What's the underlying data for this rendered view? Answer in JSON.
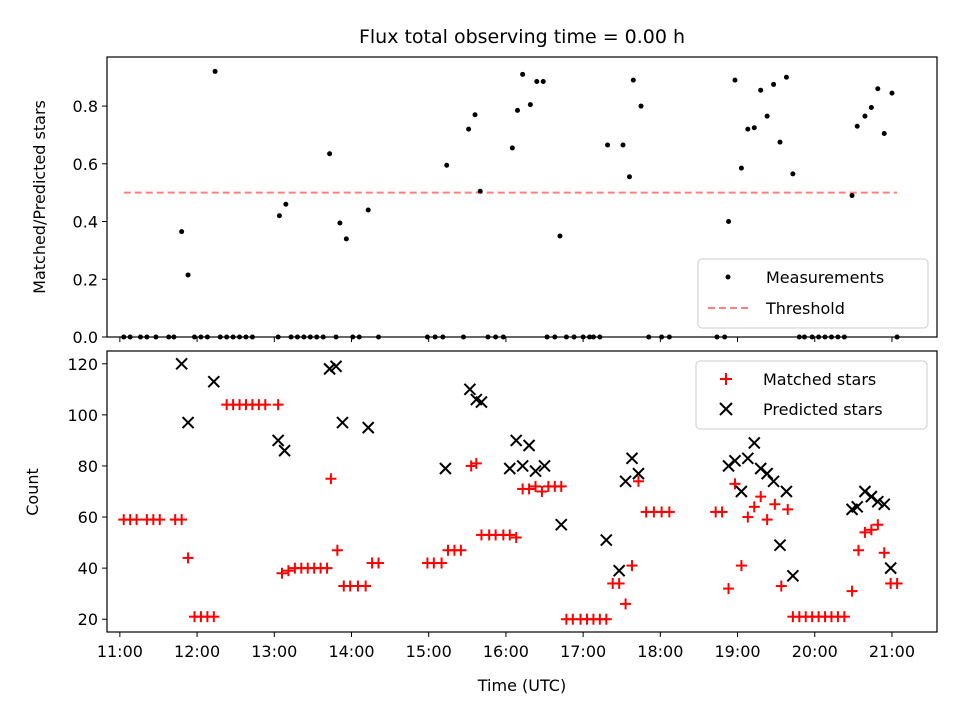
{
  "chart_data": [
    {
      "type": "scatter",
      "title": "Flux total observing time = 0.00 h",
      "xlabel": "",
      "ylabel": "Matched/Predicted stars",
      "xlim": [
        "10:50",
        "21:35"
      ],
      "ylim": [
        0,
        0.97
      ],
      "yticks": [
        0.0,
        0.2,
        0.4,
        0.6,
        0.8
      ],
      "ytick_labels": [
        "0.0",
        "0.2",
        "0.4",
        "0.6",
        "0.8"
      ],
      "grid": false,
      "legend_position": "lower-right",
      "series": [
        {
          "name": "Measurements",
          "color": "#000000",
          "marker": "dot",
          "points": [
            [
              "11:03",
              0
            ],
            [
              "11:08",
              0
            ],
            [
              "11:16",
              0
            ],
            [
              "11:21",
              0
            ],
            [
              "11:28",
              0
            ],
            [
              "11:38",
              0
            ],
            [
              "11:42",
              0
            ],
            [
              "11:48",
              0.365
            ],
            [
              "11:53",
              0.215
            ],
            [
              "11:58",
              0
            ],
            [
              "12:03",
              0
            ],
            [
              "12:08",
              0
            ],
            [
              "12:14",
              0.92
            ],
            [
              "12:18",
              0
            ],
            [
              "12:23",
              0
            ],
            [
              "12:28",
              0
            ],
            [
              "12:33",
              0
            ],
            [
              "12:38",
              0
            ],
            [
              "12:43",
              0
            ],
            [
              "13:03",
              0
            ],
            [
              "13:04",
              0.42
            ],
            [
              "13:09",
              0.46
            ],
            [
              "13:13",
              0
            ],
            [
              "13:18",
              0
            ],
            [
              "13:23",
              0
            ],
            [
              "13:28",
              0
            ],
            [
              "13:33",
              0
            ],
            [
              "13:38",
              0
            ],
            [
              "13:43",
              0.635
            ],
            [
              "13:48",
              0
            ],
            [
              "13:51",
              0.395
            ],
            [
              "13:56",
              0.34
            ],
            [
              "14:01",
              0
            ],
            [
              "14:06",
              0
            ],
            [
              "14:13",
              0.44
            ],
            [
              "14:21",
              0
            ],
            [
              "14:59",
              0
            ],
            [
              "15:05",
              0
            ],
            [
              "15:11",
              0
            ],
            [
              "15:14",
              0.595
            ],
            [
              "15:27",
              0
            ],
            [
              "15:31",
              0.72
            ],
            [
              "15:36",
              0.77
            ],
            [
              "15:40",
              0.505
            ],
            [
              "15:46",
              0
            ],
            [
              "15:52",
              0
            ],
            [
              "15:58",
              0
            ],
            [
              "16:05",
              0.655
            ],
            [
              "16:09",
              0.785
            ],
            [
              "16:13",
              0.91
            ],
            [
              "16:19",
              0.805
            ],
            [
              "16:24",
              0.885
            ],
            [
              "16:29",
              0.885
            ],
            [
              "16:32",
              0
            ],
            [
              "16:38",
              0
            ],
            [
              "16:42",
              0.35
            ],
            [
              "16:47",
              0
            ],
            [
              "16:53",
              0
            ],
            [
              "17:00",
              0
            ],
            [
              "17:05",
              0
            ],
            [
              "17:08",
              0
            ],
            [
              "17:13",
              0
            ],
            [
              "17:19",
              0.665
            ],
            [
              "17:31",
              0.665
            ],
            [
              "17:36",
              0.555
            ],
            [
              "17:39",
              0.89
            ],
            [
              "17:45",
              0.8
            ],
            [
              "17:51",
              0
            ],
            [
              "18:01",
              0
            ],
            [
              "18:07",
              0
            ],
            [
              "18:44",
              0
            ],
            [
              "18:50",
              0
            ],
            [
              "18:53",
              0.4
            ],
            [
              "18:58",
              0.89
            ],
            [
              "19:03",
              0.585
            ],
            [
              "19:08",
              0.72
            ],
            [
              "19:13",
              0.725
            ],
            [
              "19:18",
              0.855
            ],
            [
              "19:23",
              0.765
            ],
            [
              "19:28",
              0.875
            ],
            [
              "19:33",
              0.675
            ],
            [
              "19:38",
              0.9
            ],
            [
              "19:43",
              0.565
            ],
            [
              "19:48",
              0
            ],
            [
              "19:52",
              0
            ],
            [
              "19:58",
              0
            ],
            [
              "20:03",
              0
            ],
            [
              "20:08",
              0
            ],
            [
              "20:13",
              0
            ],
            [
              "20:18",
              0
            ],
            [
              "20:23",
              0
            ],
            [
              "20:29",
              0.49
            ],
            [
              "20:33",
              0.73
            ],
            [
              "20:39",
              0.765
            ],
            [
              "20:44",
              0.795
            ],
            [
              "20:49",
              0.86
            ],
            [
              "20:54",
              0.705
            ],
            [
              "21:00",
              0.845
            ],
            [
              "21:04",
              0
            ]
          ]
        },
        {
          "name": "Threshold",
          "color": "#ff7f7f",
          "style": "dashed",
          "points": [
            [
              "11:03",
              0.5
            ],
            [
              "21:04",
              0.5
            ]
          ]
        }
      ]
    },
    {
      "type": "scatter",
      "title": "",
      "xlabel": "Time (UTC)",
      "ylabel": "Count",
      "xlim": [
        "10:50",
        "21:35"
      ],
      "ylim": [
        15,
        125
      ],
      "xticks": [
        "11:00",
        "12:00",
        "13:00",
        "14:00",
        "15:00",
        "16:00",
        "17:00",
        "18:00",
        "19:00",
        "20:00",
        "21:00"
      ],
      "yticks": [
        20,
        40,
        60,
        80,
        100,
        120
      ],
      "grid": false,
      "legend_position": "upper-right",
      "series": [
        {
          "name": "Matched stars",
          "color": "#ff0000",
          "marker": "plus",
          "points": [
            [
              "11:03",
              59
            ],
            [
              "11:08",
              59
            ],
            [
              "11:13",
              59
            ],
            [
              "11:21",
              59
            ],
            [
              "11:26",
              59
            ],
            [
              "11:31",
              59
            ],
            [
              "11:43",
              59
            ],
            [
              "11:48",
              59
            ],
            [
              "11:53",
              44
            ],
            [
              "11:58",
              21
            ],
            [
              "12:03",
              21
            ],
            [
              "12:08",
              21
            ],
            [
              "12:13",
              21
            ],
            [
              "12:23",
              104
            ],
            [
              "12:28",
              104
            ],
            [
              "12:33",
              104
            ],
            [
              "12:38",
              104
            ],
            [
              "12:43",
              104
            ],
            [
              "12:48",
              104
            ],
            [
              "12:53",
              104
            ],
            [
              "13:03",
              104
            ],
            [
              "13:06",
              38
            ],
            [
              "13:11",
              39
            ],
            [
              "13:16",
              40
            ],
            [
              "13:21",
              40
            ],
            [
              "13:26",
              40
            ],
            [
              "13:31",
              40
            ],
            [
              "13:36",
              40
            ],
            [
              "13:41",
              40
            ],
            [
              "13:44",
              75
            ],
            [
              "13:49",
              47
            ],
            [
              "13:54",
              33
            ],
            [
              "13:59",
              33
            ],
            [
              "14:05",
              33
            ],
            [
              "14:11",
              33
            ],
            [
              "14:16",
              42
            ],
            [
              "14:21",
              42
            ],
            [
              "14:59",
              42
            ],
            [
              "15:04",
              42
            ],
            [
              "15:10",
              42
            ],
            [
              "15:15",
              47
            ],
            [
              "15:20",
              47
            ],
            [
              "15:25",
              47
            ],
            [
              "15:33",
              80
            ],
            [
              "15:37",
              81
            ],
            [
              "15:41",
              53
            ],
            [
              "15:47",
              53
            ],
            [
              "15:52",
              53
            ],
            [
              "15:58",
              53
            ],
            [
              "16:03",
              53
            ],
            [
              "16:08",
              52
            ],
            [
              "16:13",
              71
            ],
            [
              "16:18",
              71
            ],
            [
              "16:23",
              72
            ],
            [
              "16:28",
              70
            ],
            [
              "16:33",
              72
            ],
            [
              "16:38",
              72
            ],
            [
              "16:43",
              72
            ],
            [
              "16:47",
              20
            ],
            [
              "16:52",
              20
            ],
            [
              "16:58",
              20
            ],
            [
              "17:03",
              20
            ],
            [
              "17:08",
              20
            ],
            [
              "17:13",
              20
            ],
            [
              "17:18",
              20
            ],
            [
              "17:23",
              34
            ],
            [
              "17:28",
              34
            ],
            [
              "17:33",
              26
            ],
            [
              "17:38",
              41
            ],
            [
              "17:43",
              74
            ],
            [
              "17:49",
              62
            ],
            [
              "17:55",
              62
            ],
            [
              "18:01",
              62
            ],
            [
              "18:07",
              62
            ],
            [
              "18:43",
              62
            ],
            [
              "18:48",
              62
            ],
            [
              "18:53",
              32
            ],
            [
              "18:58",
              73
            ],
            [
              "19:03",
              41
            ],
            [
              "19:08",
              60
            ],
            [
              "19:13",
              64
            ],
            [
              "19:18",
              68
            ],
            [
              "19:23",
              59
            ],
            [
              "19:29",
              65
            ],
            [
              "19:34",
              33
            ],
            [
              "19:39",
              63
            ],
            [
              "19:43",
              21
            ],
            [
              "19:48",
              21
            ],
            [
              "19:53",
              21
            ],
            [
              "19:58",
              21
            ],
            [
              "20:03",
              21
            ],
            [
              "20:08",
              21
            ],
            [
              "20:13",
              21
            ],
            [
              "20:18",
              21
            ],
            [
              "20:23",
              21
            ],
            [
              "20:29",
              31
            ],
            [
              "20:34",
              47
            ],
            [
              "20:39",
              54
            ],
            [
              "20:44",
              55
            ],
            [
              "20:49",
              57
            ],
            [
              "20:54",
              46
            ],
            [
              "20:59",
              34
            ],
            [
              "21:04",
              34
            ]
          ]
        },
        {
          "name": "Predicted stars",
          "color": "#000000",
          "marker": "x",
          "points": [
            [
              "11:48",
              120
            ],
            [
              "11:53",
              97
            ],
            [
              "12:13",
              113
            ],
            [
              "13:03",
              90
            ],
            [
              "13:08",
              86
            ],
            [
              "13:43",
              118
            ],
            [
              "13:48",
              119
            ],
            [
              "13:53",
              97
            ],
            [
              "14:13",
              95
            ],
            [
              "15:13",
              79
            ],
            [
              "15:32",
              110
            ],
            [
              "15:37",
              106
            ],
            [
              "15:41",
              105
            ],
            [
              "16:03",
              79
            ],
            [
              "16:08",
              90
            ],
            [
              "16:13",
              80
            ],
            [
              "16:18",
              88
            ],
            [
              "16:23",
              78
            ],
            [
              "16:30",
              80
            ],
            [
              "16:43",
              57
            ],
            [
              "17:18",
              51
            ],
            [
              "17:28",
              39
            ],
            [
              "17:33",
              74
            ],
            [
              "17:38",
              83
            ],
            [
              "17:43",
              77
            ],
            [
              "18:53",
              80
            ],
            [
              "18:58",
              82
            ],
            [
              "19:03",
              70
            ],
            [
              "19:08",
              83
            ],
            [
              "19:13",
              89
            ],
            [
              "19:18",
              79
            ],
            [
              "19:23",
              77
            ],
            [
              "19:28",
              74
            ],
            [
              "19:33",
              49
            ],
            [
              "19:38",
              70
            ],
            [
              "19:43",
              37
            ],
            [
              "20:29",
              63
            ],
            [
              "20:33",
              64
            ],
            [
              "20:39",
              70
            ],
            [
              "20:44",
              68
            ],
            [
              "20:49",
              66
            ],
            [
              "20:54",
              65
            ],
            [
              "20:59",
              40
            ]
          ]
        }
      ]
    }
  ]
}
